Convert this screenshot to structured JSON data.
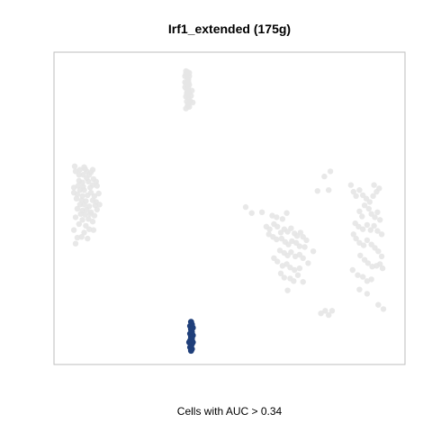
{
  "chart_data": {
    "type": "scatter",
    "title": "Irf1_extended (175g)",
    "caption": "Cells with AUC > 0.34",
    "xlabel": "",
    "ylabel": "",
    "grid": false,
    "axes_shown": false,
    "colors": {
      "inactive": "#e6e6e6",
      "active": "#1f3f7a",
      "frame": "#bdbdbd"
    },
    "series": [
      {
        "points": [
          [
            150,
            25
          ],
          [
            152,
            28
          ],
          [
            149,
            21
          ],
          [
            148,
            24
          ],
          [
            153,
            20
          ],
          [
            151,
            19
          ],
          [
            149,
            18
          ],
          [
            153,
            24
          ],
          [
            148,
            31
          ],
          [
            152,
            31
          ],
          [
            149,
            32
          ],
          [
            153,
            34
          ],
          [
            150,
            35
          ],
          [
            148,
            37
          ],
          [
            152,
            38
          ],
          [
            150,
            40
          ],
          [
            153,
            43
          ],
          [
            151,
            46
          ],
          [
            149,
            48
          ],
          [
            152,
            50
          ],
          [
            155,
            47
          ],
          [
            156,
            41
          ],
          [
            150,
            44
          ],
          [
            154,
            53
          ],
          [
            152,
            56
          ],
          [
            151,
            59
          ],
          [
            149,
            62
          ],
          [
            153,
            60
          ],
          [
            150,
            54
          ],
          [
            157,
            55
          ],
          [
            19,
            130
          ],
          [
            20,
            136
          ],
          [
            25,
            134
          ],
          [
            30,
            131
          ],
          [
            33,
            136
          ],
          [
            24,
            140
          ],
          [
            29,
            140
          ],
          [
            36,
            140
          ],
          [
            38,
            137
          ],
          [
            31,
            133
          ],
          [
            40,
            134
          ],
          [
            33,
            144
          ],
          [
            24,
            147
          ],
          [
            28,
            149
          ],
          [
            35,
            148
          ],
          [
            41,
            145
          ],
          [
            44,
            148
          ],
          [
            18,
            155
          ],
          [
            23,
            153
          ],
          [
            29,
            154
          ],
          [
            37,
            155
          ],
          [
            40,
            152
          ],
          [
            45,
            153
          ],
          [
            25,
            158
          ],
          [
            30,
            158
          ],
          [
            18,
            161
          ],
          [
            22,
            163
          ],
          [
            28,
            165
          ],
          [
            34,
            164
          ],
          [
            38,
            161
          ],
          [
            42,
            165
          ],
          [
            47,
            162
          ],
          [
            21,
            168
          ],
          [
            27,
            170
          ],
          [
            32,
            171
          ],
          [
            40,
            170
          ],
          [
            44,
            172
          ],
          [
            25,
            175
          ],
          [
            30,
            175
          ],
          [
            36,
            177
          ],
          [
            43,
            176
          ],
          [
            48,
            175
          ],
          [
            22,
            180
          ],
          [
            28,
            182
          ],
          [
            33,
            181
          ],
          [
            38,
            184
          ],
          [
            45,
            181
          ],
          [
            26,
            186
          ],
          [
            31,
            187
          ],
          [
            37,
            186
          ],
          [
            42,
            188
          ],
          [
            20,
            190
          ],
          [
            28,
            193
          ],
          [
            35,
            192
          ],
          [
            40,
            195
          ],
          [
            24,
            198
          ],
          [
            32,
            200
          ],
          [
            36,
            204
          ],
          [
            18,
            205
          ],
          [
            41,
            205
          ],
          [
            30,
            208
          ],
          [
            27,
            213
          ],
          [
            22,
            214
          ],
          [
            34,
            215
          ],
          [
            20,
            221
          ],
          [
            219,
            178
          ],
          [
            226,
            185
          ],
          [
            238,
            184
          ],
          [
            250,
            188
          ],
          [
            255,
            190
          ],
          [
            262,
            192
          ],
          [
            267,
            185
          ],
          [
            243,
            201
          ],
          [
            247,
            204
          ],
          [
            252,
            198
          ],
          [
            256,
            201
          ],
          [
            260,
            208
          ],
          [
            264,
            204
          ],
          [
            268,
            207
          ],
          [
            272,
            203
          ],
          [
            276,
            209
          ],
          [
            279,
            212
          ],
          [
            283,
            208
          ],
          [
            286,
            213
          ],
          [
            290,
            217
          ],
          [
            246,
            210
          ],
          [
            251,
            213
          ],
          [
            255,
            216
          ],
          [
            261,
            215
          ],
          [
            265,
            219
          ],
          [
            269,
            222
          ],
          [
            273,
            218
          ],
          [
            278,
            220
          ],
          [
            282,
            224
          ],
          [
            288,
            225
          ],
          [
            259,
            229
          ],
          [
            264,
            232
          ],
          [
            268,
            235
          ],
          [
            272,
            231
          ],
          [
            277,
            236
          ],
          [
            282,
            234
          ],
          [
            286,
            238
          ],
          [
            252,
            238
          ],
          [
            256,
            242
          ],
          [
            262,
            247
          ],
          [
            267,
            245
          ],
          [
            271,
            249
          ],
          [
            276,
            252
          ],
          [
            282,
            250
          ],
          [
            260,
            256
          ],
          [
            264,
            261
          ],
          [
            271,
            262
          ],
          [
            275,
            265
          ],
          [
            280,
            258
          ],
          [
            286,
            266
          ],
          [
            268,
            276
          ],
          [
            292,
            244
          ],
          [
            298,
            230
          ],
          [
            342,
            152
          ],
          [
            345,
            160
          ],
          [
            348,
            165
          ],
          [
            352,
            158
          ],
          [
            356,
            164
          ],
          [
            360,
            168
          ],
          [
            364,
            172
          ],
          [
            368,
            165
          ],
          [
            372,
            160
          ],
          [
            375,
            156
          ],
          [
            369,
            152
          ],
          [
            358,
            176
          ],
          [
            363,
            180
          ],
          [
            366,
            186
          ],
          [
            370,
            190
          ],
          [
            373,
            184
          ],
          [
            376,
            193
          ],
          [
            352,
            183
          ],
          [
            355,
            189
          ],
          [
            347,
            197
          ],
          [
            351,
            201
          ],
          [
            356,
            204
          ],
          [
            361,
            199
          ],
          [
            365,
            205
          ],
          [
            369,
            200
          ],
          [
            373,
            206
          ],
          [
            378,
            210
          ],
          [
            345,
            210
          ],
          [
            348,
            215
          ],
          [
            352,
            220
          ],
          [
            357,
            223
          ],
          [
            361,
            217
          ],
          [
            366,
            222
          ],
          [
            370,
            226
          ],
          [
            374,
            230
          ],
          [
            378,
            236
          ],
          [
            353,
            235
          ],
          [
            358,
            240
          ],
          [
            362,
            244
          ],
          [
            367,
            248
          ],
          [
            372,
            247
          ],
          [
            376,
            245
          ],
          [
            379,
            250
          ],
          [
            344,
            252
          ],
          [
            350,
            258
          ],
          [
            356,
            260
          ],
          [
            361,
            265
          ],
          [
            366,
            263
          ],
          [
            352,
            275
          ],
          [
            361,
            280
          ],
          [
            374,
            293
          ],
          [
            380,
            298
          ],
          [
            320,
            300
          ],
          [
            316,
            305
          ],
          [
            303,
            159
          ],
          [
            311,
            142
          ],
          [
            318,
            136
          ],
          [
            316,
            158
          ],
          [
            312,
            300
          ],
          [
            307,
            303
          ]
        ]
      },
      {
        "points": [
          [
            155,
            313
          ],
          [
            156,
            316
          ],
          [
            154,
            318
          ],
          [
            157,
            320
          ],
          [
            155,
            322
          ],
          [
            156,
            325
          ],
          [
            154,
            327
          ],
          [
            157,
            329
          ],
          [
            155,
            331
          ],
          [
            156,
            333
          ],
          [
            154,
            335
          ],
          [
            153,
            337
          ],
          [
            156,
            339
          ],
          [
            157,
            337
          ],
          [
            155,
            341
          ],
          [
            154,
            343
          ],
          [
            156,
            345
          ],
          [
            155,
            347
          ]
        ]
      }
    ],
    "xlim": [
      0,
      400
    ],
    "ylim": [
      0,
      360
    ]
  }
}
